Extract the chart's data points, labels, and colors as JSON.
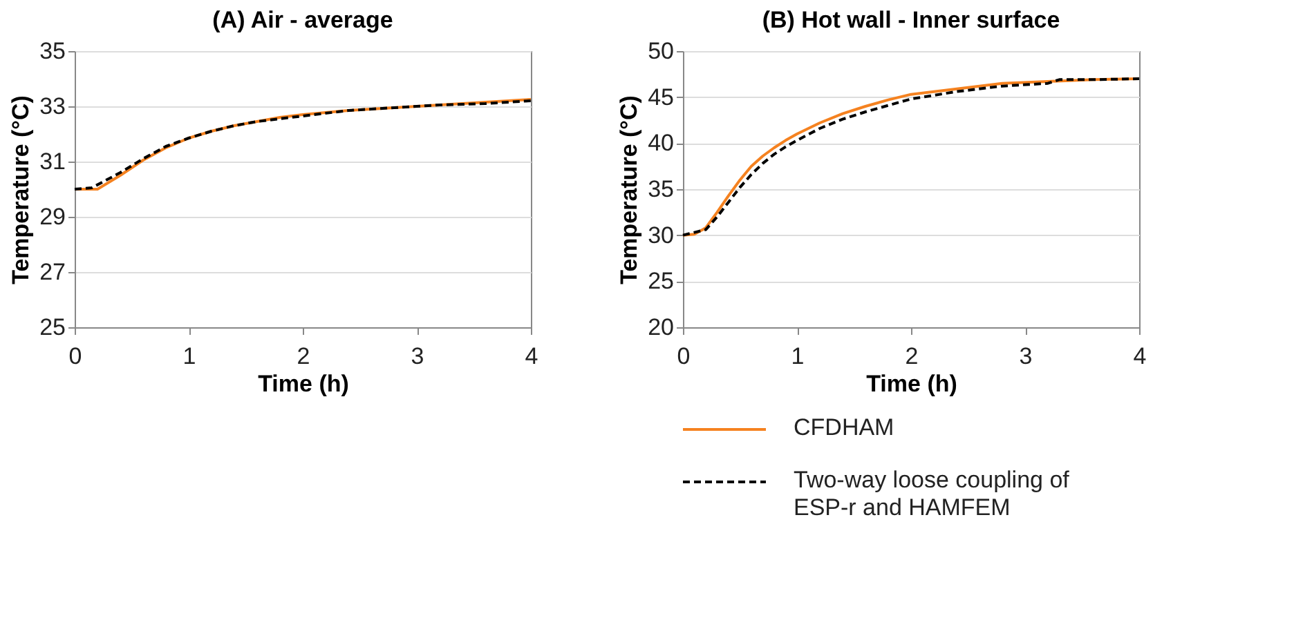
{
  "chart_data": [
    {
      "type": "line",
      "title": "(A)   Air - average",
      "xlabel": "Time (h)",
      "ylabel": "Temperature (°C)",
      "xlim": [
        0,
        4
      ],
      "xticks": [
        0,
        1,
        2,
        3,
        4
      ],
      "ylim": [
        25,
        35
      ],
      "yticks": [
        25,
        27,
        29,
        31,
        33,
        35
      ],
      "grid": "y",
      "legend": false,
      "series": [
        {
          "color": "#f58220",
          "line_style": "solid",
          "x": [
            0,
            0.2,
            0.4,
            0.6,
            0.8,
            1,
            1.2,
            1.4,
            1.6,
            1.8,
            2,
            2.4,
            2.8,
            3.2,
            3.6,
            4
          ],
          "values": [
            30,
            30,
            30.5,
            31.05,
            31.5,
            31.85,
            32.1,
            32.3,
            32.45,
            32.6,
            32.7,
            32.85,
            32.95,
            33.05,
            33.15,
            33.25
          ]
        },
        {
          "color": "#000000",
          "line_style": "dashed",
          "x": [
            0,
            0.15,
            0.4,
            0.6,
            0.8,
            1,
            1.2,
            1.4,
            1.6,
            1.8,
            2,
            2.4,
            2.8,
            3.2,
            3.6,
            4
          ],
          "values": [
            30,
            30.05,
            30.6,
            31.1,
            31.55,
            31.85,
            32.1,
            32.3,
            32.45,
            32.55,
            32.65,
            32.85,
            32.95,
            33.05,
            33.1,
            33.2
          ]
        }
      ]
    },
    {
      "type": "line",
      "title": "(B)   Hot wall - Inner surface",
      "xlabel": "Time (h)",
      "ylabel": "Temperature (°C)",
      "xlim": [
        0,
        4
      ],
      "xticks": [
        0,
        1,
        2,
        3,
        4
      ],
      "ylim": [
        20,
        50
      ],
      "yticks": [
        20,
        25,
        30,
        35,
        40,
        45,
        50
      ],
      "grid": "y",
      "legend": "bottom",
      "series": [
        {
          "name": "CFDHAM",
          "color": "#f58220",
          "line_style": "solid",
          "x": [
            0,
            0.1,
            0.2,
            0.3,
            0.4,
            0.5,
            0.6,
            0.7,
            0.8,
            0.9,
            1,
            1.2,
            1.4,
            1.6,
            1.8,
            2,
            2.4,
            2.8,
            3.2,
            3.6,
            4
          ],
          "values": [
            30,
            30.1,
            30.8,
            32.5,
            34.3,
            36,
            37.5,
            38.6,
            39.5,
            40.3,
            41,
            42.2,
            43.2,
            44,
            44.7,
            45.3,
            45.9,
            46.5,
            46.7,
            46.9,
            47
          ]
        },
        {
          "name": "Two-way loose coupling of ESP-r and HAMFEM",
          "color": "#000000",
          "line_style": "dashed",
          "x": [
            0,
            0.2,
            0.3,
            0.4,
            0.5,
            0.6,
            0.7,
            0.8,
            0.9,
            1,
            1.2,
            1.4,
            1.6,
            1.8,
            2,
            2.4,
            2.8,
            3.2,
            3.3,
            3.6,
            4
          ],
          "values": [
            30,
            30.6,
            32,
            33.6,
            35.2,
            36.6,
            37.8,
            38.8,
            39.6,
            40.3,
            41.6,
            42.6,
            43.4,
            44.1,
            44.8,
            45.6,
            46.2,
            46.5,
            46.9,
            46.9,
            47
          ]
        }
      ]
    }
  ]
}
